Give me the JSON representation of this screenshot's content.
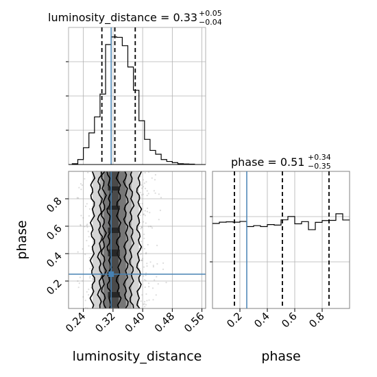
{
  "chart_data": {
    "type": "corner",
    "parameters": [
      "luminosity_distance",
      "phase"
    ],
    "injection": {
      "luminosity_distance": 0.315,
      "phase": 0.25
    },
    "marginals": [
      {
        "parameter": "luminosity_distance",
        "title_main": "luminosity_distance = 0.33",
        "title_plus": "+0.05",
        "title_minus": "−0.04",
        "quantiles": [
          0.29,
          0.325,
          0.38
        ],
        "xlim": [
          0.2,
          0.57
        ],
        "bin_edges": [
          0.21,
          0.225,
          0.24,
          0.255,
          0.27,
          0.285,
          0.3,
          0.315,
          0.33,
          0.345,
          0.36,
          0.375,
          0.39,
          0.405,
          0.42,
          0.435,
          0.45,
          0.465,
          0.48,
          0.495,
          0.51,
          0.525,
          0.54
        ],
        "counts": [
          0.2,
          1.3,
          4.4,
          8.3,
          12.5,
          18.5,
          31.5,
          33.5,
          33.4,
          31.2,
          25.6,
          19.5,
          11.5,
          6.6,
          3.7,
          2.7,
          1.3,
          0.8,
          0.5,
          0.2,
          0.15,
          0.1
        ]
      },
      {
        "parameter": "phase",
        "title_main": "phase = 0.51",
        "title_plus": "+0.34",
        "title_minus": "−0.35",
        "quantiles": [
          0.16,
          0.51,
          0.85
        ],
        "xlim": [
          0.0,
          1.0
        ],
        "bin_edges": [
          0.0,
          0.05,
          0.1,
          0.15,
          0.2,
          0.25,
          0.3,
          0.35,
          0.4,
          0.45,
          0.5,
          0.55,
          0.6,
          0.65,
          0.7,
          0.75,
          0.8,
          0.85,
          0.9,
          0.95,
          1.0
        ],
        "counts": [
          46.5,
          47.2,
          47.4,
          47.2,
          47.6,
          44.8,
          45.3,
          44.8,
          45.9,
          45.6,
          48.5,
          50.3,
          46.3,
          47.5,
          43.1,
          47.1,
          48.1,
          48.2,
          51.8,
          48.4
        ]
      }
    ],
    "joint": {
      "x": "luminosity_distance",
      "y": "phase",
      "xlim": [
        0.2,
        0.57
      ],
      "ylim": [
        0.0,
        1.0
      ],
      "x_ticks": [
        "0.24",
        "0.32",
        "0.40",
        "0.48",
        "0.56"
      ],
      "x_tick_values": [
        0.24,
        0.32,
        0.4,
        0.48,
        0.56
      ],
      "y_ticks": [
        "0.2",
        "0.4",
        "0.6",
        "0.8"
      ],
      "y_tick_values": [
        0.2,
        0.4,
        0.6,
        0.8
      ],
      "contour_bounds_x": [
        [
          0.31,
          0.335
        ],
        [
          0.295,
          0.355
        ],
        [
          0.285,
          0.37
        ],
        [
          0.265,
          0.39
        ]
      ]
    },
    "phase_x_ticks": [
      "0.2",
      "0.4",
      "0.6",
      "0.8"
    ],
    "phase_x_tick_values": [
      0.2,
      0.4,
      0.6,
      0.8
    ],
    "xlabels": [
      "luminosity_distance",
      "phase"
    ],
    "ylabel": "phase",
    "grid": true,
    "colors": {
      "truth": "#4682b4",
      "hist": "#000000",
      "grid": "#b0b0b0",
      "scatter": "#9a9a9a"
    }
  }
}
